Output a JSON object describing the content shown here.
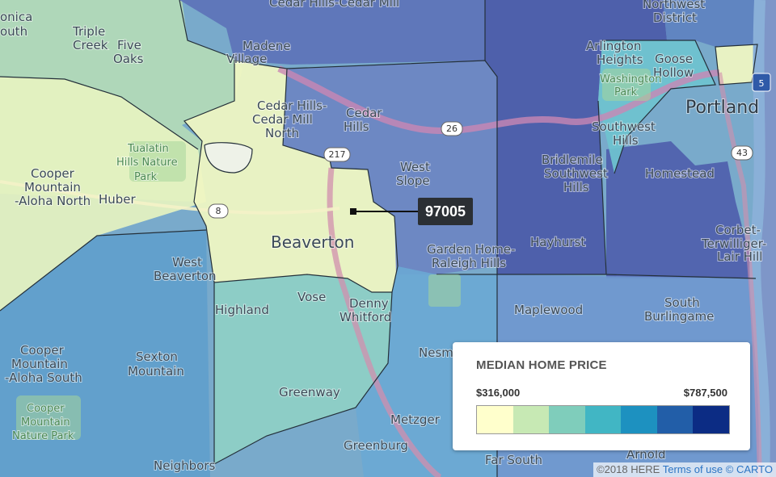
{
  "map": {
    "places": [
      {
        "id": "west-slope-top",
        "text": "Cedar Hills-Cedar Mill"
      },
      {
        "id": "northwest",
        "text": "Northwest"
      },
      {
        "id": "district",
        "text": "District"
      },
      {
        "id": "triple-creek",
        "text": "Triple"
      },
      {
        "id": "triple-creek-2",
        "text": "Creek"
      },
      {
        "id": "five-oaks",
        "text": "Five"
      },
      {
        "id": "five-oaks-2",
        "text": "Oaks"
      },
      {
        "id": "monica",
        "text": "onica"
      },
      {
        "id": "south",
        "text": "outh"
      },
      {
        "id": "madene",
        "text": "Madene"
      },
      {
        "id": "village",
        "text": "Village"
      },
      {
        "id": "arlington",
        "text": "Arlington"
      },
      {
        "id": "heights",
        "text": "Heights"
      },
      {
        "id": "goose",
        "text": "Goose"
      },
      {
        "id": "hollow",
        "text": "Hollow"
      },
      {
        "id": "washington",
        "text": "Washington"
      },
      {
        "id": "park",
        "text": "Park"
      },
      {
        "id": "portland",
        "text": "Portland"
      },
      {
        "id": "cedar-hills-1",
        "text": "Cedar Hills-"
      },
      {
        "id": "cedar-hills-2",
        "text": "Cedar Mill"
      },
      {
        "id": "cedar-hills-3",
        "text": "North"
      },
      {
        "id": "cedar",
        "text": "Cedar"
      },
      {
        "id": "hills",
        "text": "Hills"
      },
      {
        "id": "southwest",
        "text": "Southwest"
      },
      {
        "id": "hills-2",
        "text": "Hills"
      },
      {
        "id": "tualatin-1",
        "text": "Tualatin"
      },
      {
        "id": "tualatin-2",
        "text": "Hills Nature"
      },
      {
        "id": "tualatin-3",
        "text": "Park"
      },
      {
        "id": "cooper-1",
        "text": "Cooper"
      },
      {
        "id": "cooper-2",
        "text": "Mountain"
      },
      {
        "id": "cooper-3",
        "text": "-Aloha North"
      },
      {
        "id": "huber",
        "text": "Huber"
      },
      {
        "id": "west-slope",
        "text": "West"
      },
      {
        "id": "west-slope-2",
        "text": "Slope"
      },
      {
        "id": "bridlemile",
        "text": "Bridlemile"
      },
      {
        "id": "southwest-hills",
        "text": "Southwest"
      },
      {
        "id": "southwest-hills-2",
        "text": "Hills"
      },
      {
        "id": "homestead",
        "text": "Homestead"
      },
      {
        "id": "beaverton",
        "text": "Beaverton"
      },
      {
        "id": "garden-home",
        "text": "Garden Home-"
      },
      {
        "id": "raleigh",
        "text": "Raleigh Hills"
      },
      {
        "id": "hayhurst",
        "text": "Hayhurst"
      },
      {
        "id": "corbet",
        "text": "Corbet-"
      },
      {
        "id": "terwilliger",
        "text": "Terwilliger-"
      },
      {
        "id": "lair-hill",
        "text": "Lair Hill"
      },
      {
        "id": "west-beav",
        "text": "West"
      },
      {
        "id": "west-beav-2",
        "text": "Beaverton"
      },
      {
        "id": "highland",
        "text": "Highland"
      },
      {
        "id": "vose",
        "text": "Vose"
      },
      {
        "id": "denny",
        "text": "Denny"
      },
      {
        "id": "whitford",
        "text": "Whitford"
      },
      {
        "id": "maplewood",
        "text": "Maplewood"
      },
      {
        "id": "south-burl",
        "text": "South"
      },
      {
        "id": "burlingame",
        "text": "Burlingame"
      },
      {
        "id": "cooper-s-1",
        "text": "Cooper"
      },
      {
        "id": "cooper-s-2",
        "text": "Mountain"
      },
      {
        "id": "cooper-s-3",
        "text": "-Aloha South"
      },
      {
        "id": "sexton",
        "text": "Sexton"
      },
      {
        "id": "sexton-2",
        "text": "Mountain"
      },
      {
        "id": "nesmith",
        "text": "Nesm"
      },
      {
        "id": "greenway",
        "text": "Greenway"
      },
      {
        "id": "cmnp-1",
        "text": "Cooper"
      },
      {
        "id": "cmnp-2",
        "text": "Mountain"
      },
      {
        "id": "cmnp-3",
        "text": "Nature Park"
      },
      {
        "id": "metzger",
        "text": "Metzger"
      },
      {
        "id": "greenburg",
        "text": "Greenburg"
      },
      {
        "id": "neighbors",
        "text": "Neighbors"
      },
      {
        "id": "far-south",
        "text": "Far South"
      },
      {
        "id": "arnold",
        "text": "Arnold"
      }
    ],
    "highways": [
      {
        "id": "hwy-26",
        "text": "26"
      },
      {
        "id": "hwy-217",
        "text": "217"
      },
      {
        "id": "hwy-8",
        "text": "8"
      },
      {
        "id": "hwy-5",
        "text": "5"
      },
      {
        "id": "hwy-43",
        "text": "43"
      }
    ],
    "zip_label": "97005",
    "fill_colors": [
      "#ffffcc",
      "#c7e9b4",
      "#7fcdbb",
      "#41b6c4",
      "#1d91c0",
      "#225ea8",
      "#0c2c84"
    ]
  },
  "legend": {
    "title": "MEDIAN HOME PRICE",
    "min_label": "$316,000",
    "max_label": "$787,500",
    "min_value": 316000,
    "max_value": 787500,
    "bins": [
      "#ffffcc",
      "#c7e9b4",
      "#7fcdbb",
      "#41b6c4",
      "#1d91c0",
      "#225ea8",
      "#0c2c84"
    ]
  },
  "attribution": {
    "here": "©2018 HERE",
    "terms": "Terms of use",
    "carto": "© CARTO"
  }
}
